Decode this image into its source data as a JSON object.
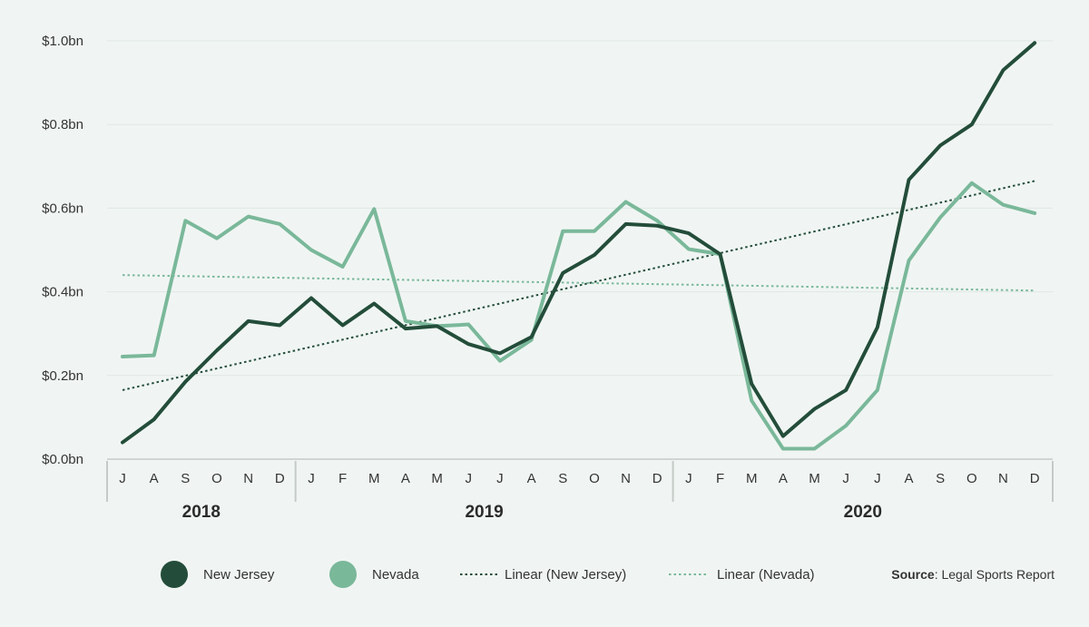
{
  "colors": {
    "background": "#f0f5f3",
    "new_jersey": "#234d3a",
    "nevada": "#7ab89a",
    "gridline": "#dfe7e3",
    "axis": "#c4cbc7"
  },
  "chart_data": {
    "type": "line",
    "title": "",
    "xlabel": "",
    "ylabel": "",
    "ylim": [
      0,
      1.0
    ],
    "yticks": [
      {
        "value": 0.0,
        "label": "$0.0bn"
      },
      {
        "value": 0.2,
        "label": "$0.2bn"
      },
      {
        "value": 0.4,
        "label": "$0.4bn"
      },
      {
        "value": 0.6,
        "label": "$0.6bn"
      },
      {
        "value": 0.8,
        "label": "$0.8bn"
      },
      {
        "value": 1.0,
        "label": "$1.0bn"
      }
    ],
    "categories": [
      "J",
      "A",
      "S",
      "O",
      "N",
      "D",
      "J",
      "F",
      "M",
      "A",
      "M",
      "J",
      "J",
      "A",
      "S",
      "O",
      "N",
      "D",
      "J",
      "F",
      "M",
      "A",
      "M",
      "J",
      "J",
      "A",
      "S",
      "O",
      "N",
      "D"
    ],
    "year_groups": [
      {
        "label": "2018",
        "start": 0,
        "end": 5
      },
      {
        "label": "2019",
        "start": 6,
        "end": 17
      },
      {
        "label": "2020",
        "start": 18,
        "end": 29
      }
    ],
    "grid": true,
    "legend_position": "bottom",
    "series": [
      {
        "name": "New Jersey",
        "color": "#234d3a",
        "style": "solid",
        "values": [
          0.04,
          0.095,
          0.185,
          0.26,
          0.33,
          0.32,
          0.385,
          0.32,
          0.372,
          0.312,
          0.318,
          0.275,
          0.253,
          0.292,
          0.445,
          0.488,
          0.562,
          0.558,
          0.54,
          0.49,
          0.18,
          0.055,
          0.12,
          0.165,
          0.315,
          0.668,
          0.75,
          0.8,
          0.93,
          0.995
        ]
      },
      {
        "name": "Nevada",
        "color": "#7ab89a",
        "style": "solid",
        "values": [
          0.245,
          0.248,
          0.57,
          0.528,
          0.58,
          0.562,
          0.5,
          0.46,
          0.598,
          0.33,
          0.318,
          0.322,
          0.235,
          0.285,
          0.545,
          0.545,
          0.615,
          0.57,
          0.502,
          0.49,
          0.14,
          0.025,
          0.025,
          0.08,
          0.165,
          0.475,
          0.578,
          0.66,
          0.608,
          0.588
        ]
      }
    ],
    "trendlines": [
      {
        "name": "Linear (New Jersey)",
        "color": "#234d3a",
        "style": "dotted",
        "start": 0.165,
        "end": 0.665
      },
      {
        "name": "Linear (Nevada)",
        "color": "#7ab89a",
        "style": "dotted",
        "start": 0.44,
        "end": 0.403
      }
    ]
  },
  "legend": {
    "items": [
      {
        "label": "New Jersey",
        "type": "circle",
        "color": "#234d3a"
      },
      {
        "label": "Nevada",
        "type": "circle",
        "color": "#7ab89a"
      },
      {
        "label": "Linear (New Jersey)",
        "type": "dotted",
        "color": "#234d3a"
      },
      {
        "label": "Linear (Nevada)",
        "type": "dotted",
        "color": "#7ab89a"
      }
    ]
  },
  "source": {
    "prefix": "Source",
    "text": ": Legal Sports Report"
  }
}
